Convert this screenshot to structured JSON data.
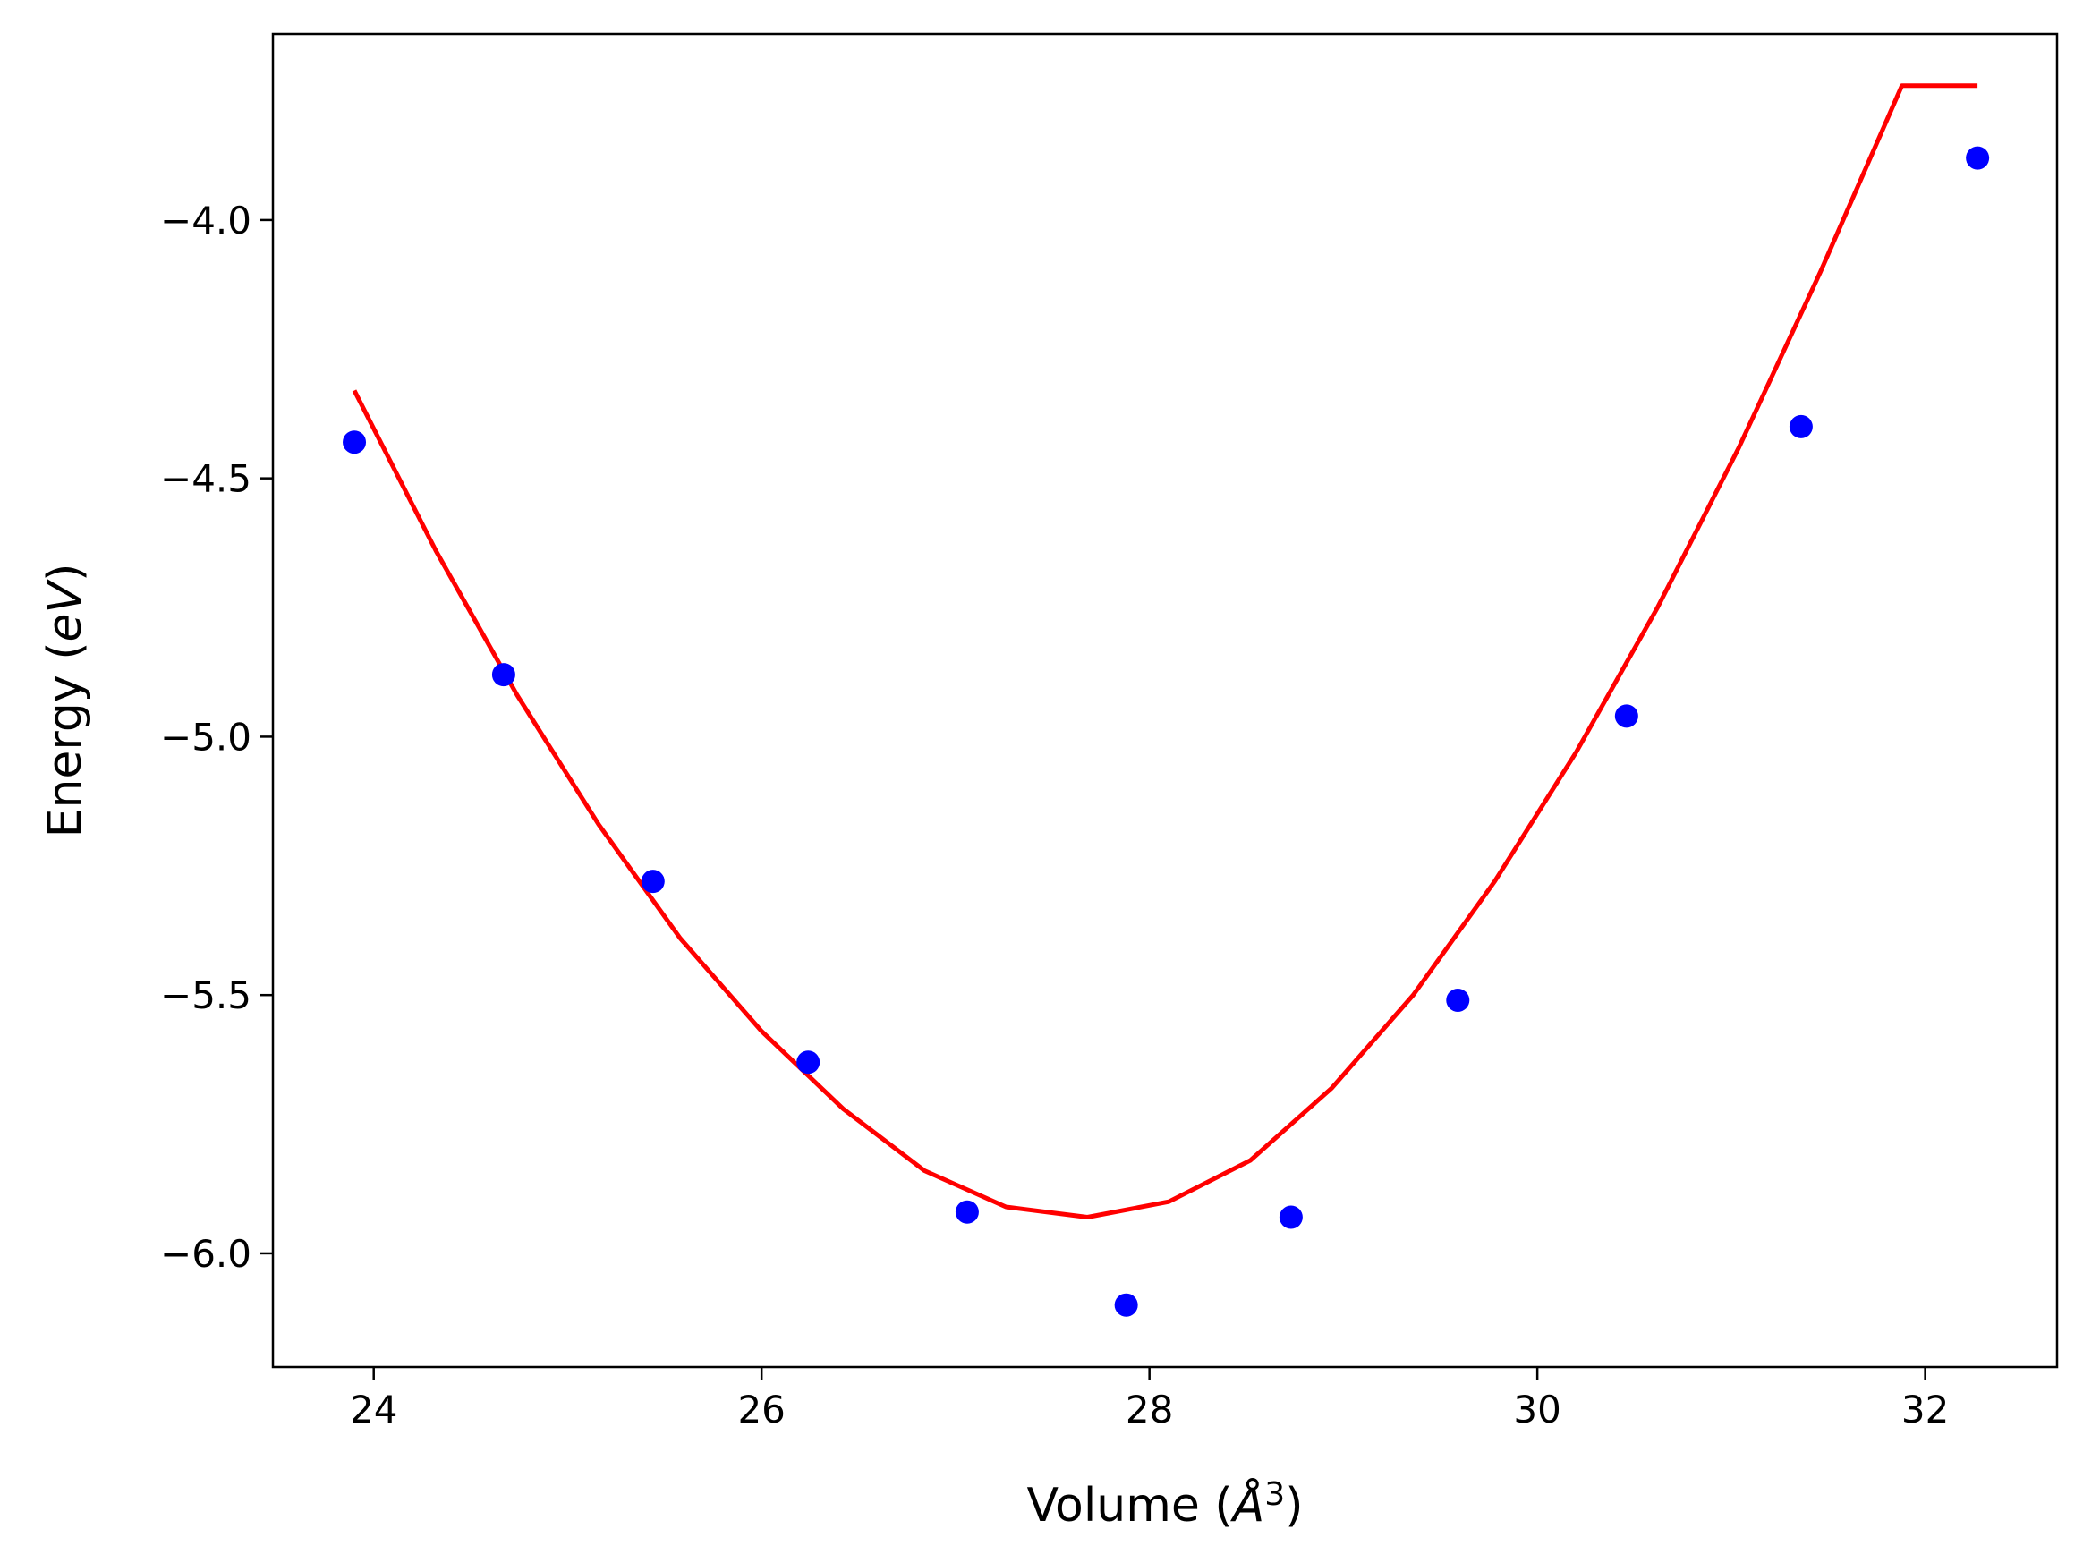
{
  "chart_data": {
    "type": "scatter",
    "title": "",
    "xlabel": {
      "text": "Volume (",
      "italic": "Å",
      "superscript": "3",
      "close": ")"
    },
    "ylabel": {
      "text": "Energy (",
      "italic": "eV",
      "close": ")"
    },
    "xlim": [
      23.48,
      32.68
    ],
    "ylim": [
      -6.22,
      -3.64
    ],
    "xticks": [
      24,
      26,
      28,
      30,
      32
    ],
    "xtick_labels": [
      "24",
      "26",
      "28",
      "30",
      "32"
    ],
    "yticks": [
      -6.0,
      -5.5,
      -5.0,
      -4.5,
      -4.0
    ],
    "ytick_labels": [
      "−6.0",
      "−5.5",
      "−5.0",
      "−4.5",
      "−4.0"
    ],
    "grid": false,
    "series": [
      {
        "kind": "scatter",
        "color": "#0000ff",
        "x": [
          23.9,
          24.67,
          25.44,
          26.24,
          27.06,
          27.88,
          28.73,
          29.59,
          30.46,
          31.36,
          32.27
        ],
        "y": [
          -4.43,
          -4.88,
          -5.28,
          -5.63,
          -5.92,
          -6.1,
          -5.93,
          -5.51,
          -4.96,
          -4.4,
          -3.88
        ]
      },
      {
        "kind": "line",
        "color": "#ff0000",
        "x": [
          23.9,
          24.32,
          24.74,
          25.16,
          25.58,
          26.0,
          26.42,
          26.84,
          27.26,
          27.68,
          28.1,
          28.52,
          28.94,
          29.36,
          29.78,
          30.2,
          30.62,
          31.04,
          31.46,
          31.88,
          32.27
        ],
        "y": [
          -4.33,
          -4.64,
          -4.92,
          -5.17,
          -5.39,
          -5.57,
          -5.72,
          -5.84,
          -5.91,
          -5.93,
          -5.9,
          -5.82,
          -5.68,
          -5.5,
          -5.28,
          -5.03,
          -4.75,
          -4.44,
          -4.1,
          -3.74,
          -3.74
        ]
      }
    ]
  }
}
